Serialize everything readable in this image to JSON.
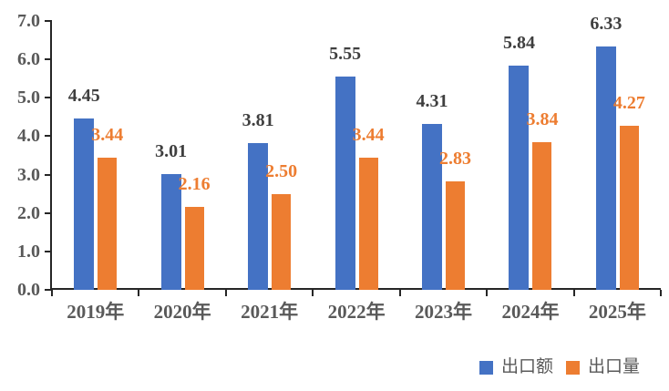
{
  "chart_data": {
    "type": "bar",
    "title": "",
    "categories": [
      "2019年",
      "2020年",
      "2021年",
      "2022年",
      "2023年",
      "2024年",
      "2025年"
    ],
    "series": [
      {
        "name": "出口额",
        "color": "#4472C4",
        "label_color": "#3F3F3F",
        "values": [
          4.45,
          3.01,
          3.81,
          5.55,
          4.31,
          5.84,
          6.33
        ]
      },
      {
        "name": "出口量",
        "color": "#ED7D31",
        "label_color": "#ED7D31",
        "values": [
          3.44,
          2.16,
          2.5,
          3.44,
          2.83,
          3.84,
          4.27
        ]
      }
    ],
    "ylim": [
      0,
      7
    ],
    "ytick_step": 1,
    "ytick_labels": [
      "0.0",
      "1.0",
      "2.0",
      "3.0",
      "4.0",
      "5.0",
      "6.0",
      "7.0"
    ],
    "value_label_decimals": 2,
    "grid": false,
    "legend_position": "bottom-right",
    "axis_color": "#262626",
    "tick_label_color": "#595959"
  }
}
